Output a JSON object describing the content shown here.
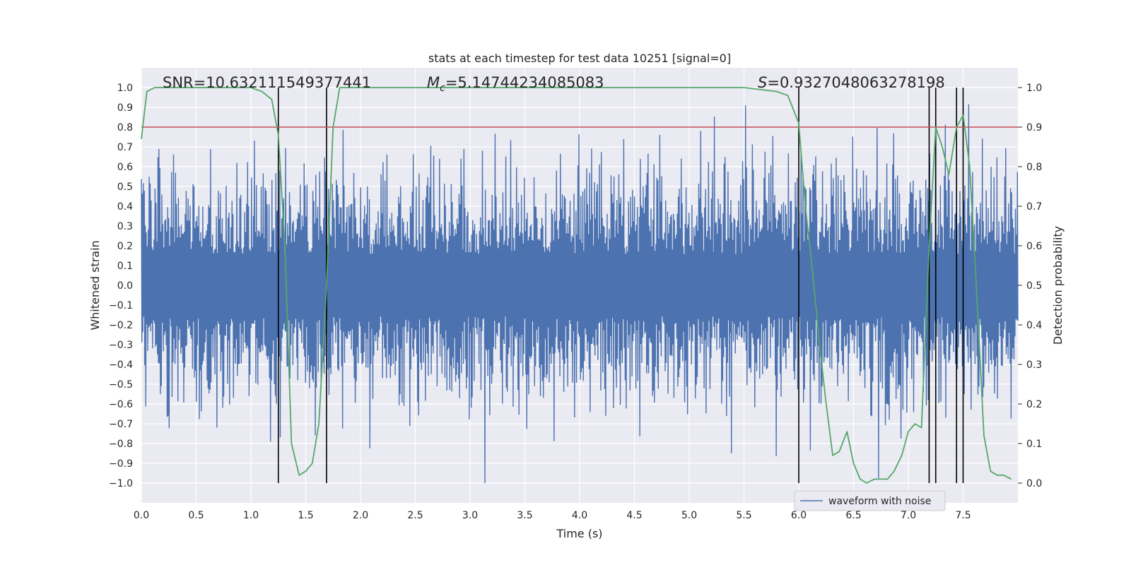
{
  "chart_data": {
    "type": "line",
    "title": "stats at each timestep for test data 10251 [signal=0]",
    "xlabel": "Time (s)",
    "ylabel": "Whitened strain",
    "y2label": "Detection probability",
    "xlim": [
      0.0,
      8.0
    ],
    "ylim": [
      -1.1,
      1.1
    ],
    "y2lim": [
      -0.05,
      1.05
    ],
    "x_ticks": [
      0.0,
      0.5,
      1.0,
      1.5,
      2.0,
      2.5,
      3.0,
      3.5,
      4.0,
      4.5,
      5.0,
      5.5,
      6.0,
      6.5,
      7.0,
      7.5
    ],
    "y_ticks": [
      -1.0,
      -0.9,
      -0.8,
      -0.7,
      -0.6,
      -0.5,
      -0.4,
      -0.3,
      -0.2,
      -0.1,
      0.0,
      0.1,
      0.2,
      0.3,
      0.4,
      0.5,
      0.6,
      0.7,
      0.8,
      0.9,
      1.0
    ],
    "y2_ticks": [
      0.0,
      0.1,
      0.2,
      0.3,
      0.4,
      0.5,
      0.6,
      0.7,
      0.8,
      0.9,
      1.0
    ],
    "annotations": {
      "snr": "SNR=10.632111549377441",
      "mc_symbol": "M",
      "mc_subscript": "c",
      "mc_value": "=5.14744234085083",
      "s_symbol": "S",
      "s_value": "=0.9327048063278198"
    },
    "legend": {
      "location": "lower-right",
      "entries": [
        "waveform with noise"
      ]
    },
    "threshold": {
      "y2": 0.9,
      "color": "#c44e52"
    },
    "vertical_lines_x": [
      1.25,
      1.69,
      6.0,
      7.19,
      7.25,
      7.44,
      7.5
    ],
    "series": [
      {
        "name": "waveform with noise",
        "axis": "left",
        "color": "#4c72b0",
        "kind": "noise",
        "sample_count": 1800,
        "typical_envelope": [
          -0.45,
          0.45
        ],
        "extreme_range": [
          -1.0,
          0.97
        ]
      },
      {
        "name": "detection probability",
        "axis": "right",
        "color": "#55a868",
        "x": [
          0.0,
          0.05,
          0.12,
          0.2,
          0.5,
          0.8,
          1.0,
          1.1,
          1.19,
          1.25,
          1.31,
          1.37,
          1.44,
          1.5,
          1.56,
          1.62,
          1.69,
          1.75,
          1.81,
          2.0,
          3.0,
          4.0,
          5.0,
          5.5,
          5.8,
          5.9,
          6.0,
          6.06,
          6.12,
          6.19,
          6.25,
          6.31,
          6.37,
          6.44,
          6.5,
          6.56,
          6.62,
          6.69,
          6.75,
          6.81,
          6.87,
          6.94,
          7.0,
          7.06,
          7.12,
          7.19,
          7.25,
          7.31,
          7.37,
          7.44,
          7.5,
          7.56,
          7.62,
          7.69,
          7.75,
          7.81,
          7.87,
          7.94
        ],
        "y": [
          0.87,
          0.99,
          1.0,
          1.0,
          1.0,
          1.0,
          1.0,
          0.99,
          0.97,
          0.88,
          0.6,
          0.1,
          0.02,
          0.03,
          0.05,
          0.15,
          0.5,
          0.9,
          1.0,
          1.0,
          1.0,
          1.0,
          1.0,
          1.0,
          0.99,
          0.98,
          0.91,
          0.7,
          0.55,
          0.35,
          0.2,
          0.07,
          0.08,
          0.13,
          0.05,
          0.01,
          0.0,
          0.01,
          0.01,
          0.01,
          0.03,
          0.07,
          0.13,
          0.15,
          0.14,
          0.6,
          0.9,
          0.85,
          0.78,
          0.9,
          0.93,
          0.8,
          0.5,
          0.12,
          0.03,
          0.02,
          0.02,
          0.01
        ]
      }
    ]
  }
}
